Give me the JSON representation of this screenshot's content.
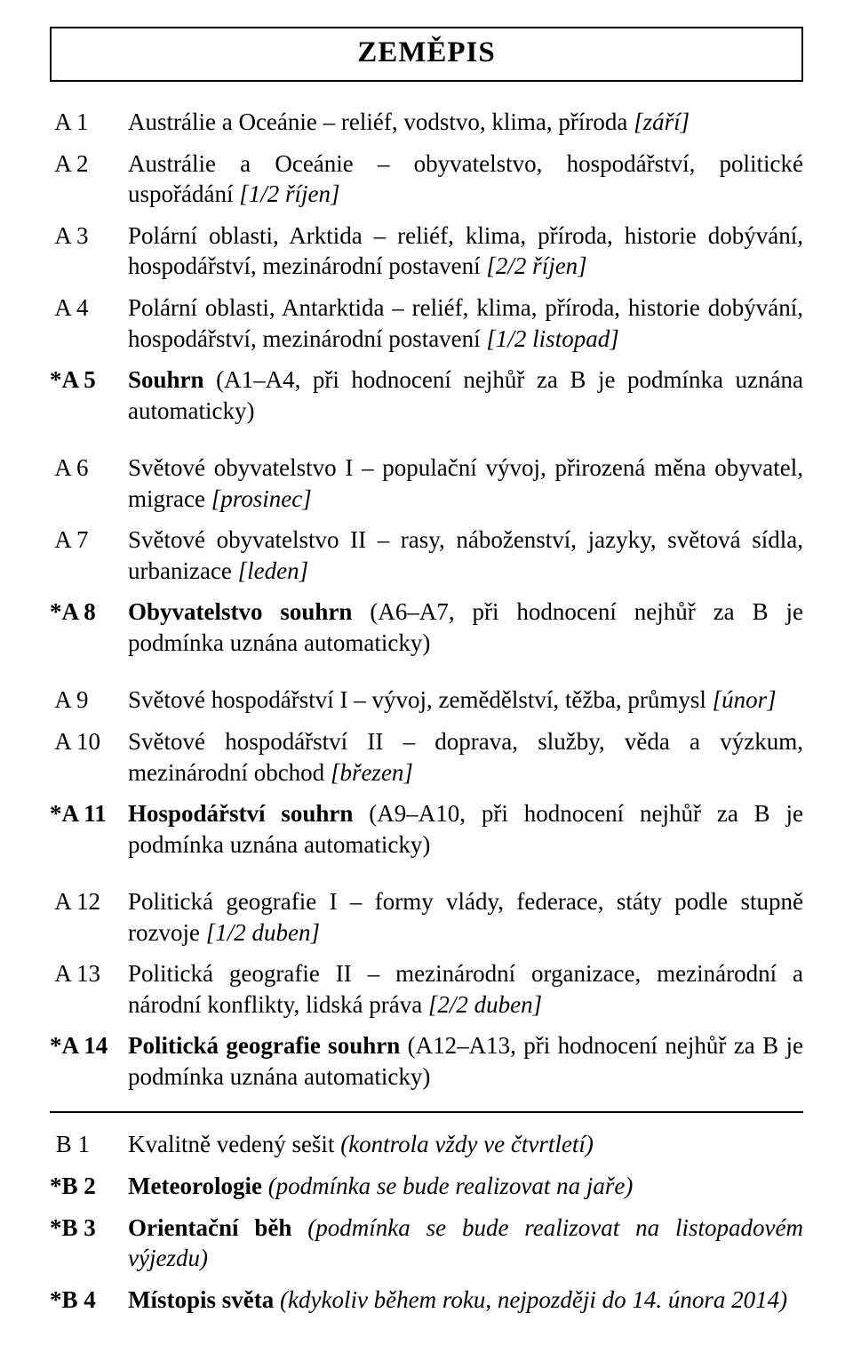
{
  "title": "ZEMĚPIS",
  "entries": [
    {
      "code": " A 1",
      "parts": [
        {
          "t": "Austrálie a Oceánie – reliéf, vodstvo, klima, příroda "
        },
        {
          "t": "[září]",
          "style": "i"
        }
      ]
    },
    {
      "code": " A 2",
      "parts": [
        {
          "t": "Austrálie a Oceánie – obyvatelstvo, hospodářství, politické uspořádání "
        },
        {
          "t": "[1/2 říjen]",
          "style": "i"
        }
      ]
    },
    {
      "code": " A 3",
      "parts": [
        {
          "t": "Polární oblasti, Arktida – reliéf, klima, příroda, historie dobývání, hospodářství, mezinárodní postavení "
        },
        {
          "t": "[2/2 říjen]",
          "style": "i"
        }
      ]
    },
    {
      "code": " A 4",
      "parts": [
        {
          "t": "Polární oblasti, Antarktida – reliéf, klima, příroda, historie dobývání, hospodářství, mezinárodní postavení "
        },
        {
          "t": "[1/2 listopad]",
          "style": "i"
        }
      ]
    },
    {
      "code": "*A 5",
      "codeBold": true,
      "parts": [
        {
          "t": "Souhrn",
          "style": "b"
        },
        {
          "t": " (A1–A4, při hodnocení nejhůř za B je podmínka uznána automaticky)"
        }
      ],
      "gapAfter": "lg"
    },
    {
      "code": " A 6",
      "parts": [
        {
          "t": "Světové obyvatelstvo I – populační vývoj, přirozená měna obyvatel, migrace "
        },
        {
          "t": "[prosinec]",
          "style": "i"
        }
      ]
    },
    {
      "code": " A 7",
      "parts": [
        {
          "t": "Světové obyvatelstvo II – rasy, náboženství, jazyky, světová sídla, urbanizace "
        },
        {
          "t": "[leden]",
          "style": "i"
        }
      ]
    },
    {
      "code": "*A 8",
      "codeBold": true,
      "parts": [
        {
          "t": "Obyvatelstvo souhrn",
          "style": "b"
        },
        {
          "t": " (A6–A7, při hodnocení nejhůř za B je podmínka uznána automaticky)"
        }
      ],
      "gapAfter": "lg"
    },
    {
      "code": " A 9",
      "parts": [
        {
          "t": "Světové hospodářství I – vývoj, zemědělství, těžba, průmysl "
        },
        {
          "t": "[únor]",
          "style": "i"
        }
      ]
    },
    {
      "code": " A 10",
      "parts": [
        {
          "t": "Světové hospodářství II – doprava, služby, věda a výzkum, mezinárodní obchod "
        },
        {
          "t": "[březen]",
          "style": "i"
        }
      ]
    },
    {
      "code": "*A 11",
      "codeBold": true,
      "parts": [
        {
          "t": "Hospodářství souhrn",
          "style": "b"
        },
        {
          "t": " (A9–A10, při hodnocení nejhůř za B je podmínka uznána automaticky)"
        }
      ],
      "gapAfter": "lg"
    },
    {
      "code": " A 12",
      "parts": [
        {
          "t": "Politická geografie I – formy vlády, federace, státy podle stupně rozvoje "
        },
        {
          "t": "[1/2 duben]",
          "style": "i"
        }
      ]
    },
    {
      "code": " A 13",
      "parts": [
        {
          "t": "Politická geografie II – mezinárodní organizace, mezinárodní a národní konflikty, lidská práva "
        },
        {
          "t": "[2/2 duben]",
          "style": "i"
        }
      ]
    },
    {
      "code": "*A 14",
      "codeBold": true,
      "parts": [
        {
          "t": "Politická geografie souhrn",
          "style": "b"
        },
        {
          "t": " (A12–A13, při hodnocení nejhůř za B je podmínka uznána automaticky)"
        }
      ],
      "hrAfter": true
    },
    {
      "code": " B 1",
      "parts": [
        {
          "t": "Kvalitně vedený sešit "
        },
        {
          "t": "(kontrola vždy ve čtvrtletí)",
          "style": "i"
        }
      ]
    },
    {
      "code": "*B 2",
      "codeBold": true,
      "parts": [
        {
          "t": "Meteorologie",
          "style": "b"
        },
        {
          "t": " "
        },
        {
          "t": "(podmínka se bude realizovat na jaře)",
          "style": "i"
        }
      ]
    },
    {
      "code": "*B 3",
      "codeBold": true,
      "parts": [
        {
          "t": "Orientační běh",
          "style": "b"
        },
        {
          "t": " "
        },
        {
          "t": "(podmínka se bude realizovat na listopadovém výjezdu)",
          "style": "i"
        }
      ]
    },
    {
      "code": "*B 4",
      "codeBold": true,
      "parts": [
        {
          "t": "Místopis světa",
          "style": "b"
        },
        {
          "t": " "
        },
        {
          "t": "(kdykoliv během roku, nejpozději do 14. února 2014)",
          "style": "i"
        }
      ]
    }
  ]
}
